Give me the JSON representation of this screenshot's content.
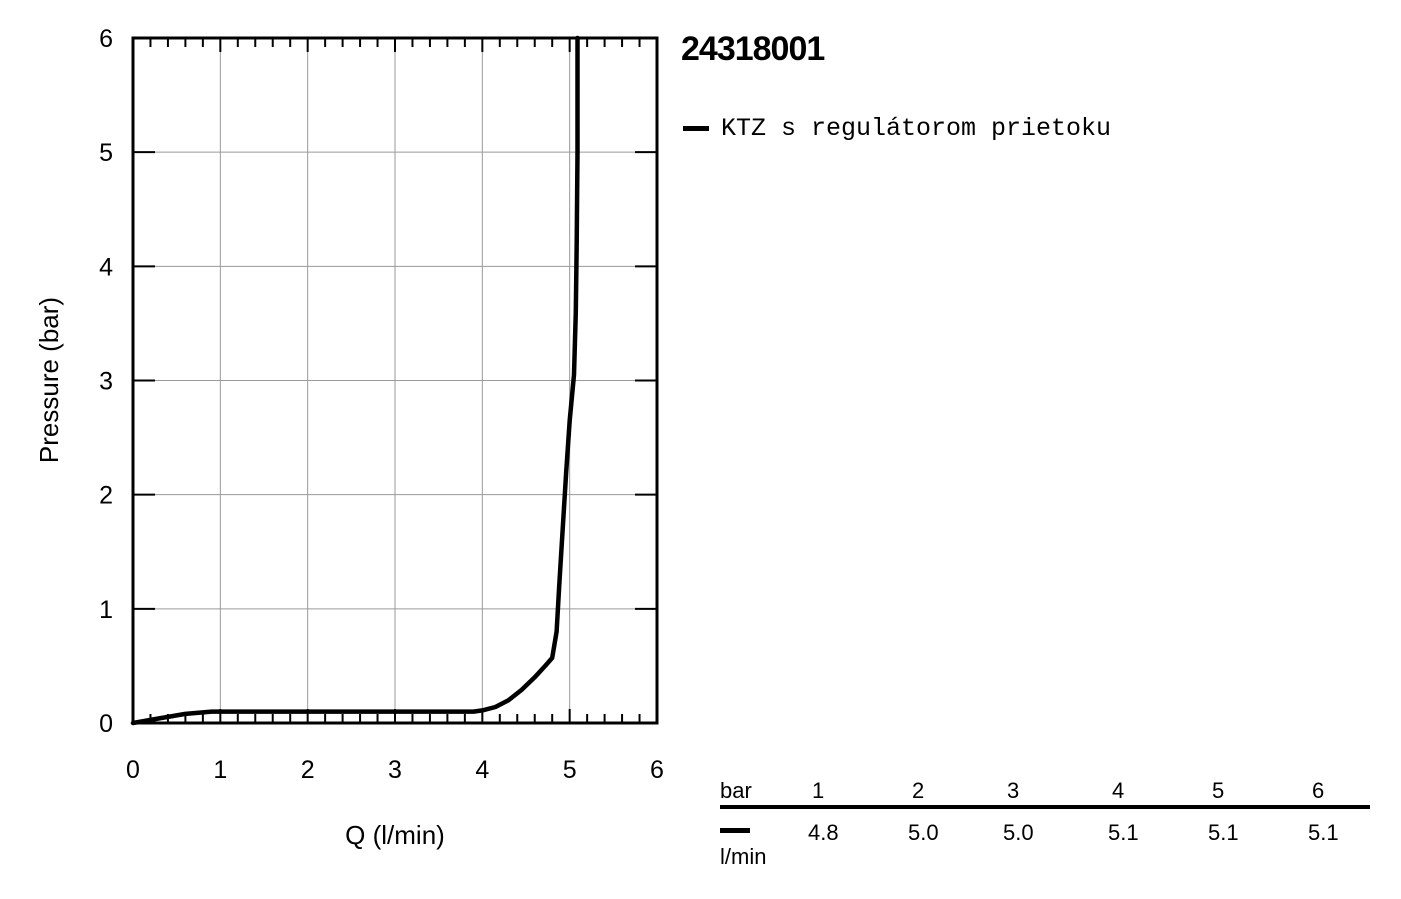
{
  "title": "24318001",
  "legend": {
    "label": "KTZ s regulátorom prietoku"
  },
  "chart_data": {
    "type": "line",
    "xlabel": "Q (l/min)",
    "ylabel": "Pressure (bar)",
    "xlim": [
      0,
      6
    ],
    "ylim": [
      0,
      6
    ],
    "x_ticks": [
      "0",
      "1",
      "2",
      "3",
      "4",
      "5",
      "6"
    ],
    "y_ticks": [
      "0",
      "1",
      "2",
      "3",
      "4",
      "5",
      "6"
    ],
    "grid": true,
    "series": [
      {
        "name": "KTZ s regulátorom prietoku",
        "color": "#000000",
        "points": [
          [
            0.0,
            0.0
          ],
          [
            0.3,
            0.04
          ],
          [
            0.6,
            0.08
          ],
          [
            0.9,
            0.1
          ],
          [
            1.2,
            0.1
          ],
          [
            2.0,
            0.1
          ],
          [
            3.0,
            0.1
          ],
          [
            3.9,
            0.1
          ],
          [
            4.0,
            0.11
          ],
          [
            4.15,
            0.14
          ],
          [
            4.3,
            0.2
          ],
          [
            4.45,
            0.29
          ],
          [
            4.6,
            0.4
          ],
          [
            4.72,
            0.5
          ],
          [
            4.8,
            0.57
          ],
          [
            4.85,
            0.8
          ],
          [
            4.88,
            1.2
          ],
          [
            4.92,
            1.7
          ],
          [
            4.96,
            2.2
          ],
          [
            5.0,
            2.65
          ],
          [
            5.05,
            3.05
          ],
          [
            5.07,
            3.6
          ],
          [
            5.08,
            4.2
          ],
          [
            5.09,
            5.0
          ],
          [
            5.09,
            6.0
          ]
        ]
      }
    ]
  },
  "table": {
    "header_label": "bar",
    "columns": [
      "1",
      "2",
      "3",
      "4",
      "5",
      "6"
    ],
    "values": [
      "4.8",
      "5.0",
      "5.0",
      "5.1",
      "5.1",
      "5.1"
    ],
    "unit": "l/min"
  }
}
